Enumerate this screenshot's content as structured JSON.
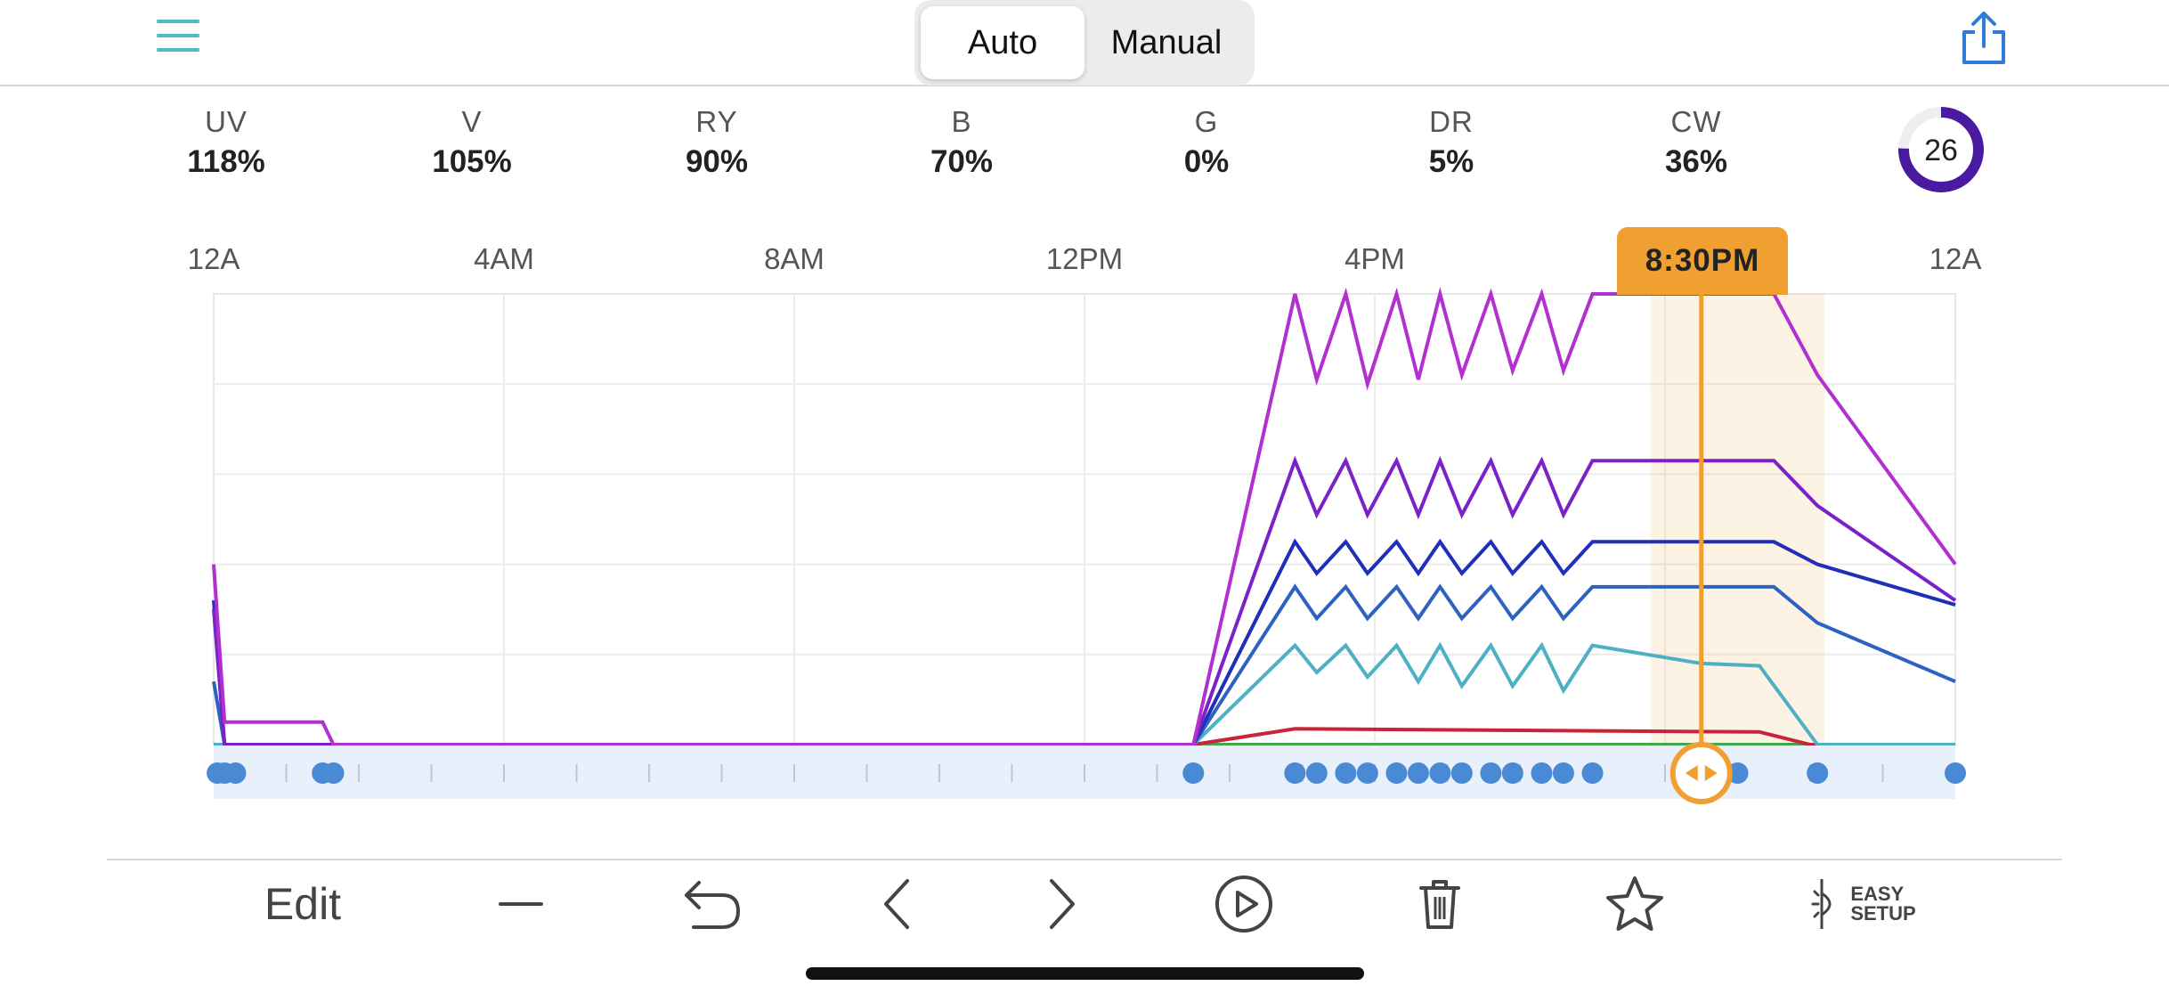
{
  "header": {
    "menu_icon": "hamburger-icon",
    "modes": [
      {
        "label": "Auto",
        "active": true
      },
      {
        "label": "Manual",
        "active": false
      }
    ],
    "share_icon": "share-icon"
  },
  "channels": [
    {
      "label": "UV",
      "value": "118%"
    },
    {
      "label": "V",
      "value": "105%"
    },
    {
      "label": "RY",
      "value": "90%"
    },
    {
      "label": "B",
      "value": "70%"
    },
    {
      "label": "G",
      "value": "0%"
    },
    {
      "label": "DR",
      "value": "5%"
    },
    {
      "label": "CW",
      "value": "36%"
    }
  ],
  "gauge": {
    "value": "26",
    "fraction": 0.26,
    "color": "#4a1aa0"
  },
  "time_axis": {
    "ticks": [
      "12A",
      "4AM",
      "8AM",
      "12PM",
      "4PM",
      "",
      "12A"
    ]
  },
  "current_time": {
    "label": "8:30PM",
    "hours": 20.5,
    "color": "#f0a030"
  },
  "chart_data": {
    "type": "line",
    "x_unit": "hours",
    "xlim": [
      0,
      24
    ],
    "ylim": [
      0,
      100
    ],
    "series": [
      {
        "color": "#b22fd0",
        "x": [
          0,
          0.15,
          1.5,
          1.65,
          13.5,
          14.9,
          15.2,
          15.6,
          15.9,
          16.3,
          16.6,
          16.9,
          17.2,
          17.6,
          17.9,
          18.3,
          18.6,
          19.0,
          21.5,
          22.1,
          24
        ],
        "y": [
          40,
          5,
          5,
          0,
          0,
          100,
          81,
          100,
          80,
          100,
          81,
          100,
          82,
          100,
          83,
          100,
          83,
          100,
          100,
          82,
          40
        ]
      },
      {
        "color": "#7a22c8",
        "x": [
          0,
          0.15,
          13.5,
          14.9,
          15.2,
          15.6,
          15.9,
          16.3,
          16.6,
          16.9,
          17.2,
          17.6,
          17.9,
          18.3,
          18.6,
          19.0,
          21.5,
          22.1,
          24
        ],
        "y": [
          30,
          0,
          0,
          63,
          51,
          63,
          51,
          63,
          51,
          63,
          51,
          63,
          51,
          63,
          51,
          63,
          63,
          53,
          32
        ]
      },
      {
        "color": "#1f2fb8",
        "x": [
          0,
          0.15,
          13.5,
          14.9,
          15.2,
          15.6,
          15.9,
          16.3,
          16.6,
          16.9,
          17.2,
          17.6,
          17.9,
          18.3,
          18.6,
          19.0,
          21.5,
          22.1,
          24
        ],
        "y": [
          32,
          0,
          0,
          45,
          38,
          45,
          38,
          45,
          38,
          45,
          38,
          45,
          38,
          45,
          38,
          45,
          45,
          40,
          31
        ]
      },
      {
        "color": "#2e62c0",
        "x": [
          0,
          0.15,
          13.5,
          14.9,
          15.2,
          15.6,
          15.9,
          16.3,
          16.6,
          16.9,
          17.2,
          17.6,
          17.9,
          18.3,
          18.6,
          19.0,
          21.5,
          22.1,
          24
        ],
        "y": [
          14,
          0,
          0,
          35,
          28,
          35,
          28,
          35,
          28,
          35,
          28,
          35,
          28,
          35,
          28,
          35,
          35,
          27,
          14
        ]
      },
      {
        "color": "#4db0c4",
        "x": [
          0,
          0.15,
          13.5,
          14.9,
          15.2,
          15.6,
          15.9,
          16.3,
          16.6,
          16.9,
          17.2,
          17.6,
          17.9,
          18.3,
          18.6,
          19.0,
          20.5,
          21.3,
          22.1,
          24
        ],
        "y": [
          0,
          0,
          0,
          22,
          16,
          22,
          15,
          22,
          14,
          22,
          13,
          22,
          13,
          22,
          12,
          22,
          18,
          17.5,
          0,
          0
        ]
      },
      {
        "color": "#c8243c",
        "x": [
          0,
          13.5,
          14.9,
          21.3,
          22.0,
          24
        ],
        "y": [
          0,
          0,
          3.5,
          2.8,
          0,
          0
        ]
      },
      {
        "color": "#3ea84a",
        "x": [
          0,
          24
        ],
        "y": [
          0,
          0
        ]
      }
    ],
    "keyframes": [
      0.05,
      0.15,
      0.3,
      1.5,
      1.65,
      13.5,
      14.9,
      15.2,
      15.6,
      15.9,
      16.3,
      16.6,
      16.9,
      17.2,
      17.6,
      17.9,
      18.3,
      18.6,
      19.0,
      21.0,
      22.1,
      24
    ],
    "highlight_range": [
      19.8,
      22.2
    ],
    "grid": true
  },
  "toolbar": {
    "edit_label": "Edit",
    "easy_setup_line1": "EASY",
    "easy_setup_line2": "SETUP"
  }
}
